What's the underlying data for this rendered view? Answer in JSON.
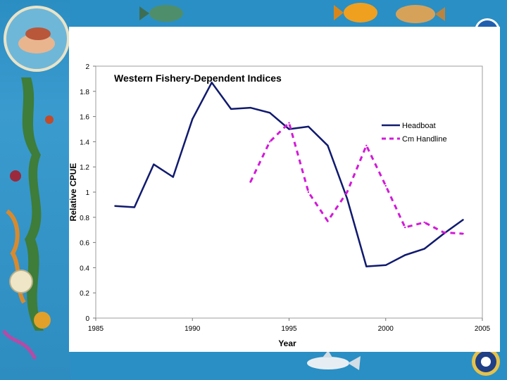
{
  "chart_data": {
    "type": "line",
    "title": "Western Fishery-Dependent Indices",
    "xlabel": "Year",
    "ylabel": "Relative CPUE",
    "xlim": [
      1985,
      2005
    ],
    "ylim": [
      0,
      2
    ],
    "xticks": [
      1985,
      1990,
      1995,
      2000,
      2005
    ],
    "yticks": [
      0,
      0.2,
      0.4,
      0.6,
      0.8,
      1,
      1.2,
      1.4,
      1.6,
      1.8,
      2
    ],
    "grid": false,
    "legend_position": "top-right",
    "series": [
      {
        "name": "Headboat",
        "color": "#101a6e",
        "style": "solid",
        "x": [
          1986,
          1987,
          1988,
          1989,
          1990,
          1991,
          1992,
          1993,
          1994,
          1995,
          1996,
          1997,
          1998,
          1999,
          2000,
          2001,
          2002,
          2003,
          2004
        ],
        "y": [
          0.89,
          0.88,
          1.22,
          1.12,
          1.58,
          1.87,
          1.66,
          1.67,
          1.63,
          1.5,
          1.52,
          1.37,
          0.95,
          0.41,
          0.42,
          0.5,
          0.55,
          0.67,
          0.78
        ]
      },
      {
        "name": "Cm Handline",
        "color": "#d21ad8",
        "style": "dashed",
        "x": [
          1993,
          1994,
          1995,
          1996,
          1997,
          1998,
          1999,
          2000,
          2001,
          2002,
          2003,
          2004
        ],
        "y": [
          1.08,
          1.4,
          1.55,
          1.0,
          0.77,
          1.0,
          1.37,
          1.05,
          0.72,
          0.76,
          0.68,
          0.67
        ]
      }
    ]
  }
}
